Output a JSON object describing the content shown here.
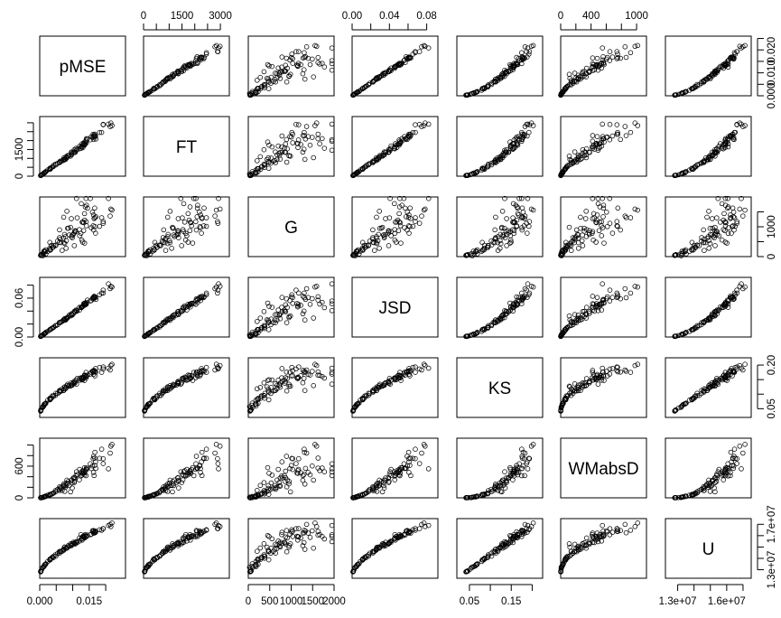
{
  "chart_data": {
    "type": "scatter",
    "title": "",
    "variables": [
      "pMSE",
      "FT",
      "G",
      "JSD",
      "KS",
      "WMabsD",
      "U"
    ],
    "ranges": {
      "pMSE": [
        0,
        0.026
      ],
      "FT": [
        0,
        3350
      ],
      "G": [
        0,
        2000
      ],
      "JSD": [
        0,
        0.092
      ],
      "KS": [
        0.02,
        0.225
      ],
      "WMabsD": [
        0,
        1130
      ],
      "U": [
        12250000,
        17500000
      ]
    },
    "axes": {
      "top": [
        {
          "column": "FT",
          "ticks": [
            0,
            500,
            1000,
            1500,
            2000,
            2500,
            3000
          ],
          "labels": [
            "0",
            "",
            "",
            "1500",
            "",
            "",
            "3000"
          ]
        },
        {
          "column": "JSD",
          "ticks": [
            0,
            0.02,
            0.04,
            0.06,
            0.08
          ],
          "labels": [
            "0.00",
            "",
            "0.04",
            "",
            "0.08"
          ]
        },
        {
          "column": "WMabsD",
          "ticks": [
            0,
            200,
            400,
            600,
            800,
            1000
          ],
          "labels": [
            "0",
            "",
            "400",
            "",
            "",
            "1000"
          ]
        }
      ],
      "bottom": [
        {
          "column": "pMSE",
          "ticks": [
            0,
            0.005,
            0.01,
            0.015,
            0.02
          ],
          "labels": [
            "0.000",
            "",
            "",
            "0.015",
            ""
          ]
        },
        {
          "column": "G",
          "ticks": [
            0,
            500,
            1000,
            1500,
            2000
          ],
          "labels": [
            "0",
            "500",
            "1000",
            "1500",
            "2000"
          ]
        },
        {
          "column": "KS",
          "ticks": [
            0.05,
            0.1,
            0.15,
            0.2
          ],
          "labels": [
            "0.05",
            "",
            "0.15",
            ""
          ]
        },
        {
          "column": "U",
          "ticks": [
            13000000,
            14000000,
            15000000,
            16000000,
            17000000
          ],
          "labels": [
            "1.3e+07",
            "",
            "",
            "1.6e+07",
            ""
          ]
        }
      ],
      "left": [
        {
          "row": "FT",
          "ticks": [
            0,
            500,
            1000,
            1500,
            2000,
            2500,
            3000
          ],
          "labels": [
            "0",
            "",
            "",
            "1500",
            "",
            "",
            ""
          ]
        },
        {
          "row": "JSD",
          "ticks": [
            0,
            0.02,
            0.04,
            0.06,
            0.08
          ],
          "labels": [
            "0.00",
            "",
            "",
            "0.06",
            ""
          ]
        },
        {
          "row": "WMabsD",
          "ticks": [
            0,
            200,
            400,
            600,
            800,
            1000
          ],
          "labels": [
            "0",
            "",
            "",
            "600",
            "",
            ""
          ]
        }
      ],
      "right": [
        {
          "row": "pMSE",
          "ticks": [
            0,
            0.005,
            0.01,
            0.015,
            0.02,
            0.025
          ],
          "labels": [
            "0.000",
            "",
            "0.010",
            "",
            "0.020",
            ""
          ]
        },
        {
          "row": "G",
          "ticks": [
            0,
            500,
            1000,
            1500
          ],
          "labels": [
            "0",
            "",
            "1000",
            ""
          ]
        },
        {
          "row": "KS",
          "ticks": [
            0.05,
            0.1,
            0.15,
            0.2
          ],
          "labels": [
            "0.05",
            "",
            "",
            "0.20"
          ]
        },
        {
          "row": "U",
          "ticks": [
            13000000,
            14000000,
            15000000,
            16000000,
            17000000
          ],
          "labels": [
            "1.3e+07",
            "",
            "",
            "",
            "1.7e+07"
          ]
        }
      ]
    },
    "n_points": 100,
    "grid": false,
    "legend": "none"
  }
}
